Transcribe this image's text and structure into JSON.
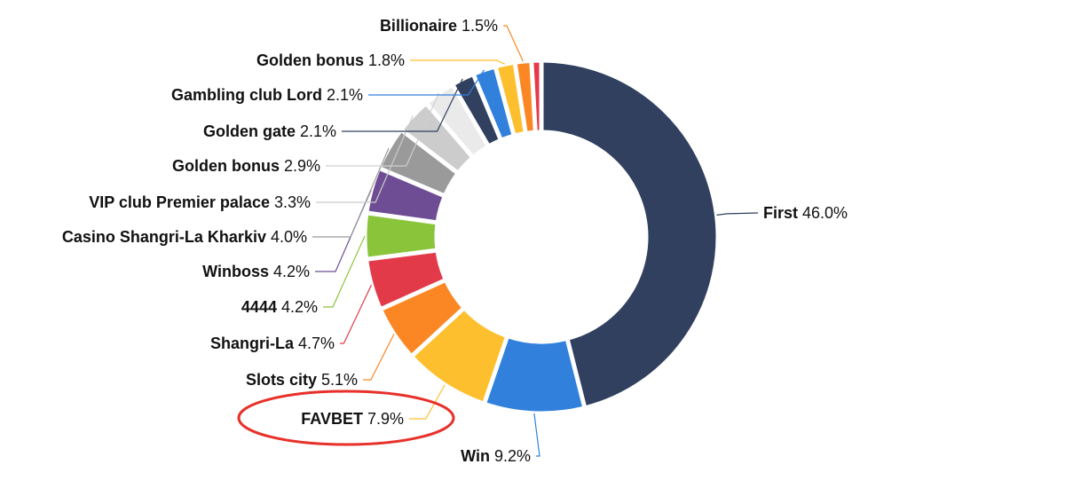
{
  "chart_data": {
    "type": "pie",
    "donut": true,
    "title": "",
    "legend": "none",
    "label_format": "name + percent, connected by leader lines colored like the slices",
    "highlighted": "FAVBET",
    "highlight_style": "red ellipse outline around the label",
    "highlight_color": "#e8302a",
    "slices": [
      {
        "name": "First",
        "value": 46.0,
        "label": "46.0%",
        "color": "#30405e"
      },
      {
        "name": "Win",
        "value": 9.2,
        "label": "9.2%",
        "color": "#3181dc"
      },
      {
        "name": "FAVBET",
        "value": 7.9,
        "label": "7.9%",
        "color": "#fdbf2d"
      },
      {
        "name": "Slots city",
        "value": 5.1,
        "label": "5.1%",
        "color": "#fb8724"
      },
      {
        "name": "Shangri-La",
        "value": 4.7,
        "label": "4.7%",
        "color": "#e33a4a"
      },
      {
        "name": "4444",
        "value": 4.2,
        "label": "4.2%",
        "color": "#8ac43a"
      },
      {
        "name": "Winboss",
        "value": 4.2,
        "label": "4.2%",
        "color": "#6e4d95"
      },
      {
        "name": "Casino Shangri-La Kharkiv",
        "value": 4.0,
        "label": "4.0%",
        "color": "#9a9a9a"
      },
      {
        "name": "VIP club Premier palace",
        "value": 3.3,
        "label": "3.3%",
        "color": "#cccccc"
      },
      {
        "name": "Golden bonus",
        "value": 2.9,
        "label": "2.9%",
        "color": "#eaeaea"
      },
      {
        "name": "Golden gate",
        "value": 2.1,
        "label": "2.1%",
        "color": "#30405e"
      },
      {
        "name": "Gambling club Lord",
        "value": 2.1,
        "label": "2.1%",
        "color": "#3181dc"
      },
      {
        "name": "Golden bonus",
        "value": 1.8,
        "label": "1.8%",
        "color": "#fdbf2d"
      },
      {
        "name": "Billionaire",
        "value": 1.5,
        "label": "1.5%",
        "color": "#fb8724"
      },
      {
        "name": "",
        "value": 0.9,
        "label": "",
        "color": "#e33a4a"
      }
    ]
  }
}
